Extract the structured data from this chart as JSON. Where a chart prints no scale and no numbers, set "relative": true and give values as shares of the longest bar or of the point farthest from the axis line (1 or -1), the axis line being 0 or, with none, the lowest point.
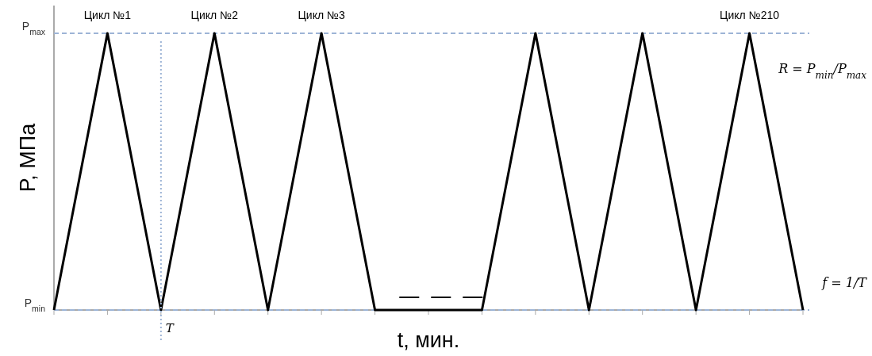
{
  "chart_data": {
    "type": "line",
    "xlabel": "t, мин.",
    "ylabel": "P, МПа",
    "relative": true,
    "categories": [
      null,
      null,
      null,
      null,
      null,
      null,
      null,
      null,
      null,
      null,
      null,
      null,
      null,
      null,
      null
    ],
    "series": [
      {
        "color": "#000000",
        "values": [
          0,
          1,
          0,
          1,
          0,
          1,
          0,
          0,
          0,
          1,
          0,
          1,
          0,
          1,
          0
        ]
      }
    ],
    "ref_lines": [
      {
        "axis": "y",
        "value": 1,
        "label": "P$_{max}$",
        "color": "#9db4d6",
        "line_style": "dashed"
      },
      {
        "axis": "y",
        "value": 0,
        "label": "P$_{min}$",
        "color": "#9db4d6",
        "line_style": "dashed"
      }
    ],
    "annotations": [
      "Цикл №1",
      "Цикл №2",
      "Цикл №3",
      "Цикл №210",
      "T",
      "R = P$_{min}$/P$_{max}$",
      "f = 1/T"
    ],
    "marker": "none",
    "line_style": "solid"
  }
}
